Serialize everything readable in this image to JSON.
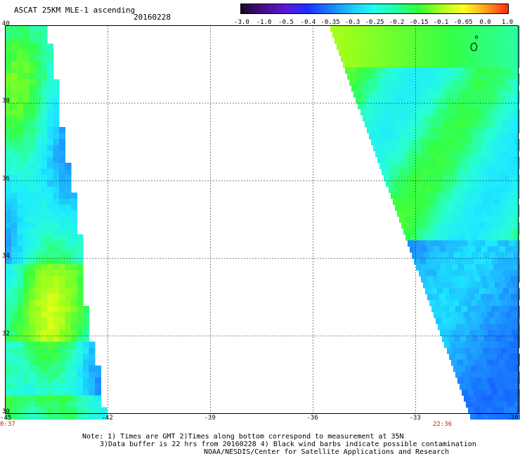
{
  "header": {
    "title": "ASCAT 25KM MLE-1 ascending",
    "date": "20160228"
  },
  "colorbar": {
    "labels": [
      "-3.0",
      "-1.0",
      "-0.5",
      "-0.4",
      "-0.35",
      "-0.3",
      "-0.25",
      "-0.2",
      "-0.15",
      "-0.1",
      "-0.05",
      "0.0",
      "1.0"
    ],
    "colors": [
      "#1a0a2a",
      "#4a0a8a",
      "#5a1ad8",
      "#1a30ff",
      "#1a80ff",
      "#20c8ff",
      "#20ffe8",
      "#20ffa0",
      "#30ff30",
      "#a8ff20",
      "#ffff20",
      "#ffa020",
      "#ff2a10"
    ]
  },
  "map": {
    "lon_labels": [
      "-45",
      "-42",
      "-39",
      "-36",
      "-33",
      "-30"
    ],
    "lat_labels": [
      "40",
      "38",
      "36",
      "34",
      "32",
      "30"
    ],
    "lon_range": [
      -45,
      -30
    ],
    "lat_range": [
      30,
      40
    ],
    "grid": "dotted"
  },
  "swaths": {
    "left_time": "0:37",
    "right_time": "22:36"
  },
  "notes": {
    "line1": "Note: 1) Times are GMT 2)Times along bottom correspond to measurement at 35N",
    "line2": "3)Data buffer is 22 hrs from 20160228 4) Black wind barbs indicate possible contamination",
    "line3": "NOAA/NESDIS/Center for Satellite Applications and Research"
  }
}
